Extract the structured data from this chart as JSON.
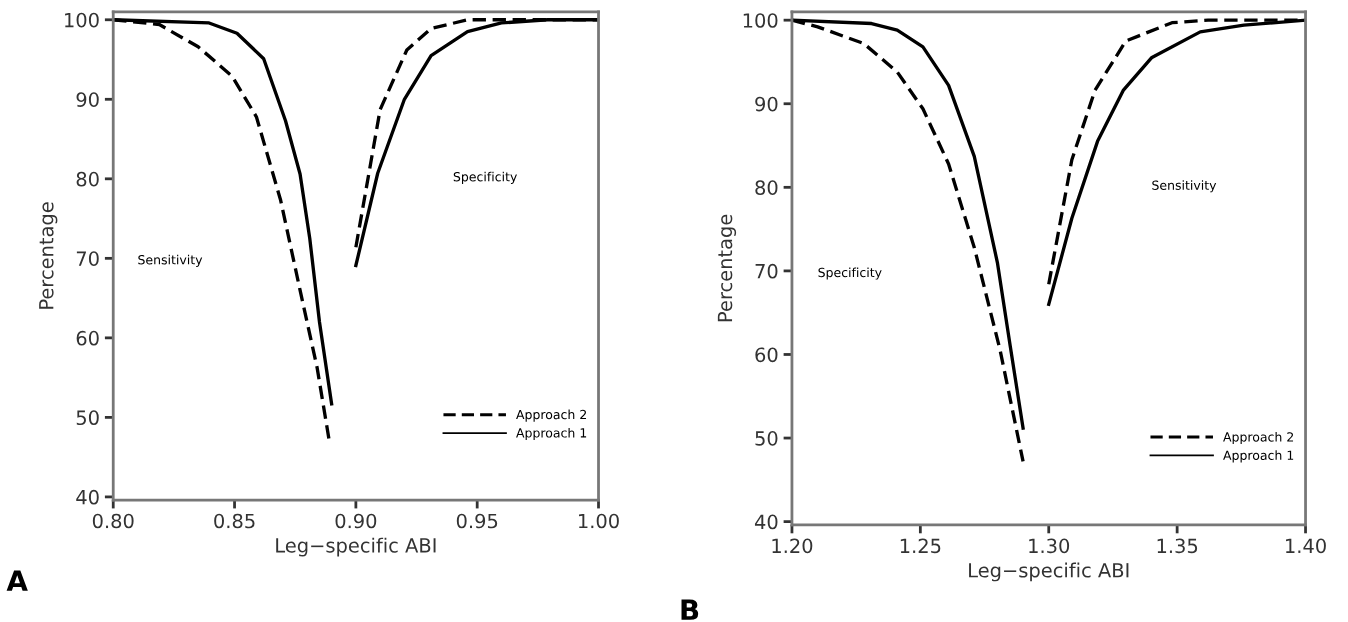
{
  "chart_data": [
    {
      "type": "line",
      "xlabel": "Leg−specific ABI",
      "ylabel": "Percentage",
      "xlim": [
        0.8,
        1.0
      ],
      "xticks": [
        {
          "value": 0.8,
          "label": "0.80"
        },
        {
          "value": 0.85,
          "label": "0.85"
        },
        {
          "value": 0.9,
          "label": "0.90"
        },
        {
          "value": 0.95,
          "label": "0.95"
        },
        {
          "value": 1.0,
          "label": "1.00"
        }
      ],
      "ylim": [
        39.6,
        101
      ],
      "yticks": [
        40,
        50,
        60,
        70,
        80,
        90,
        100
      ],
      "legend": "bottom right",
      "grid": false,
      "marker": "none",
      "annotations": [
        "A",
        "Sensitivity",
        "Specificity"
      ],
      "series": [
        {
          "name": "Approach 2",
          "color": "#000000",
          "line_style": "dashed",
          "x": [
            0.8,
            0.819,
            0.835,
            0.849,
            0.859,
            0.869,
            0.877,
            0.884,
            0.889
          ],
          "values": [
            100,
            99.4,
            96.6,
            92.9,
            87.8,
            77.3,
            66,
            56.3,
            47.1
          ]
        },
        {
          "name": "Approach 1",
          "color": "#000000",
          "line_style": "solid",
          "x": [
            0.8,
            0.8395,
            0.851,
            0.862,
            0.871,
            0.877,
            0.881,
            0.885,
            0.89
          ],
          "values": [
            100,
            99.6,
            98.3,
            95.1,
            87.3,
            80.6,
            72.5,
            62,
            51.7
          ]
        },
        {
          "color": "#000000",
          "line_style": "dashed",
          "x": [
            0.9,
            0.91,
            0.921,
            0.931,
            0.946,
            1.0
          ],
          "values": [
            71.4,
            88.7,
            96.2,
            98.9,
            100,
            100
          ]
        },
        {
          "color": "#000000",
          "line_style": "solid",
          "x": [
            0.9,
            0.909,
            0.92,
            0.931,
            0.946,
            0.96,
            0.979,
            1.0
          ],
          "values": [
            69.1,
            80.7,
            90,
            95.5,
            98.5,
            99.6,
            100,
            100
          ]
        }
      ]
    },
    {
      "type": "line",
      "xlabel": "Leg−specific ABI",
      "ylabel": "Percentage",
      "xlim": [
        1.2,
        1.4
      ],
      "xticks": [
        {
          "value": 1.2,
          "label": "1.20"
        },
        {
          "value": 1.25,
          "label": "1.25"
        },
        {
          "value": 1.3,
          "label": "1.30"
        },
        {
          "value": 1.35,
          "label": "1.35"
        },
        {
          "value": 1.4,
          "label": "1.40"
        }
      ],
      "ylim": [
        39.6,
        101
      ],
      "yticks": [
        40,
        50,
        60,
        70,
        80,
        90,
        100
      ],
      "legend": "bottom right",
      "grid": false,
      "marker": "none",
      "annotations": [
        "B",
        "Specificity",
        "Sensitivity"
      ],
      "series": [
        {
          "name": "Approach 2",
          "color": "#000000",
          "line_style": "dashed",
          "x": [
            1.2,
            1.21,
            1.228,
            1.241,
            1.251,
            1.261,
            1.271,
            1.281,
            1.29
          ],
          "values": [
            100,
            99.2,
            97.2,
            93.8,
            89.4,
            82.8,
            72.8,
            60.6,
            47.2
          ]
        },
        {
          "name": "Approach 1",
          "color": "#000000",
          "line_style": "solid",
          "x": [
            1.2,
            1.231,
            1.241,
            1.251,
            1.261,
            1.271,
            1.28,
            1.285,
            1.29
          ],
          "values": [
            100,
            99.6,
            98.8,
            96.8,
            92.2,
            83.7,
            71,
            61,
            51.2
          ]
        },
        {
          "color": "#000000",
          "line_style": "dashed",
          "x": [
            1.3,
            1.309,
            1.318,
            1.33,
            1.348,
            1.362,
            1.4
          ],
          "values": [
            68.4,
            83.3,
            91.6,
            97.5,
            99.7,
            100,
            100
          ]
        },
        {
          "color": "#000000",
          "line_style": "solid",
          "x": [
            1.3,
            1.309,
            1.319,
            1.329,
            1.34,
            1.359,
            1.376,
            1.4
          ],
          "values": [
            66,
            76.3,
            85.5,
            91.6,
            95.5,
            98.6,
            99.4,
            100
          ]
        }
      ]
    }
  ]
}
